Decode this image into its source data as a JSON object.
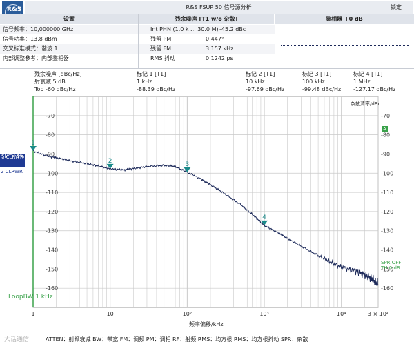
{
  "header": {
    "logo_text": "R&S",
    "title": "R&S FSUP 50 信号源分析",
    "lock_label": "锁定"
  },
  "table_headers": {
    "settings": "设置",
    "residual_noise": "残余噪声 [T1 w/o 杂散]",
    "phase_detector": "鉴相器 +0 dB"
  },
  "settings_rows": [
    {
      "label": "信号频率：",
      "value": "10,000000 GHz"
    },
    {
      "label": "信号功率：",
      "value": "13.8 dBm"
    },
    {
      "label": "交叉标准模式：",
      "value": "谐波 1"
    },
    {
      "label": "内部调整参考：",
      "value": "内部鉴相器"
    }
  ],
  "noise_rows": [
    {
      "label": "Int PHN (1.0 k ... 30.0 M)",
      "value": "-45.2 dBc"
    },
    {
      "label": "残留 PM",
      "value": "0.447°"
    },
    {
      "label": "残留 FM",
      "value": "3.157 kHz"
    },
    {
      "label": "RMS 抖动",
      "value": "0.1242 ps"
    }
  ],
  "marker_header": {
    "col0": [
      "残余噪声 [dBc/Hz]",
      "射衰减        5 dB",
      "Top -60 dBc/Hz"
    ],
    "markers": [
      {
        "name": "标记 1 [T1]",
        "freq": "1 kHz",
        "level": "-88.39 dBc/Hz"
      },
      {
        "name": "标记 2 [T1]",
        "freq": "10 kHz",
        "level": "-97.69 dBc/Hz"
      },
      {
        "name": "标记 3 [T1]",
        "freq": "100 kHz",
        "level": "-99.48 dBc/Hz"
      },
      {
        "name": "标记 4 [T1]",
        "freq": "1 MHz",
        "level": "-127.17 dBc/Hz"
      }
    ]
  },
  "plot_labels": {
    "y_right_title": "杂散清率/dBc",
    "trace1_a": "1 CLRWR",
    "trace1_b": "SMTH 1%",
    "trace2": "2 CLRWR",
    "loop_bw": "LoopBW 1 kHz",
    "spr_off": "SPR OFF",
    "th": "TH 0 dB",
    "a_badge": "A",
    "x_axis_title": "频率偏移/kHz"
  },
  "footer": {
    "watermark": "大话通信",
    "legend": "ATTEN：射频衰减   BW：带宽   FM：调频   PM：调相   RF：射频   RMS：均方根   RMS：均方根抖动   SPR：杂散"
  },
  "colors": {
    "trace": "#1d2a5a",
    "marker": "#1a8a8a",
    "left_axis": "#3aa24a",
    "grid": "#c9c9c9"
  },
  "chart_data": {
    "type": "line",
    "title": "",
    "xlabel": "频率偏移/kHz",
    "ylabel": "",
    "x_scale": "log",
    "xlim": [
      1,
      30000
    ],
    "ylim": [
      -170,
      -60
    ],
    "x_tick_labels": [
      "1",
      "10",
      "10²",
      "10³",
      "10⁴",
      "3 × 10⁴"
    ],
    "x_tick_values": [
      1,
      10,
      100,
      1000,
      10000,
      30000
    ],
    "y_tick_values": [
      -70,
      -80,
      -90,
      -100,
      -110,
      -120,
      -130,
      -140,
      -150,
      -160
    ],
    "series": [
      {
        "x": [
          1,
          1.5,
          2,
          3,
          5,
          7,
          10,
          15,
          20,
          30,
          50,
          70,
          100,
          150,
          200,
          300,
          500,
          700,
          1000,
          1500,
          2000,
          3000,
          5000,
          7000,
          10000,
          15000,
          20000,
          25000,
          30000
        ],
        "y": [
          -88.4,
          -91,
          -92,
          -93.5,
          -95,
          -96.3,
          -97.7,
          -98.3,
          -97.6,
          -96.5,
          -96,
          -96.5,
          -99.5,
          -103,
          -106,
          -110.5,
          -116.5,
          -121.5,
          -127.2,
          -131,
          -134,
          -138,
          -143,
          -146,
          -149,
          -151,
          -153,
          -155,
          -158
        ]
      }
    ],
    "markers": [
      {
        "label": "1",
        "x": 1,
        "y": -88.39
      },
      {
        "label": "2",
        "x": 10,
        "y": -97.69
      },
      {
        "label": "3",
        "x": 100,
        "y": -99.48
      },
      {
        "label": "4",
        "x": 1000,
        "y": -127.17
      }
    ]
  }
}
